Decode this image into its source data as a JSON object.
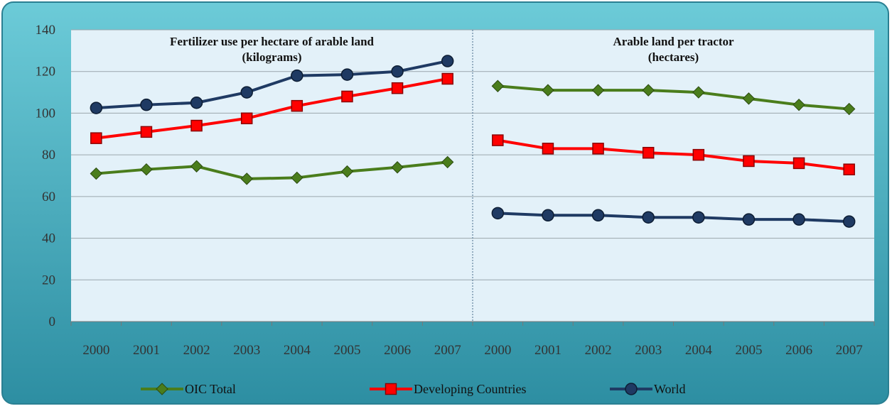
{
  "chart_data": {
    "type": "line",
    "annotations": [
      {
        "lines": [
          "Fertilizer use per hectare of arable land",
          "(kilograms)"
        ]
      },
      {
        "lines": [
          "Arable land per tractor",
          "(hectares)"
        ]
      }
    ],
    "categories": [
      "2000",
      "2001",
      "2002",
      "2003",
      "2004",
      "2005",
      "2006",
      "2007",
      "2000",
      "2001",
      "2002",
      "2003",
      "2004",
      "2005",
      "2006",
      "2007"
    ],
    "panels": [
      [
        0,
        8
      ],
      [
        8,
        16
      ]
    ],
    "series": [
      {
        "name": "OIC Total",
        "color": "#4a7d1c",
        "marker": "diamond",
        "values": [
          71,
          73,
          74.5,
          68.5,
          69,
          72,
          74,
          76.5,
          113,
          111,
          111,
          111,
          110,
          107,
          104,
          102
        ]
      },
      {
        "name": "Developing Countries",
        "color": "#ff0000",
        "marker": "square",
        "values": [
          88,
          91,
          94,
          97.5,
          103.5,
          108,
          112,
          116.5,
          87,
          83,
          83,
          81,
          80,
          77,
          76,
          73
        ]
      },
      {
        "name": "World",
        "color": "#1f3a63",
        "marker": "circle",
        "values": [
          102.5,
          104,
          105,
          110,
          118,
          118.5,
          120,
          125,
          52,
          51,
          51,
          50,
          50,
          49,
          49,
          48
        ]
      }
    ],
    "ylim": [
      0,
      140
    ],
    "yticks": [
      0,
      20,
      40,
      60,
      80,
      100,
      120,
      140
    ],
    "grid": true,
    "legend": "bottom"
  }
}
